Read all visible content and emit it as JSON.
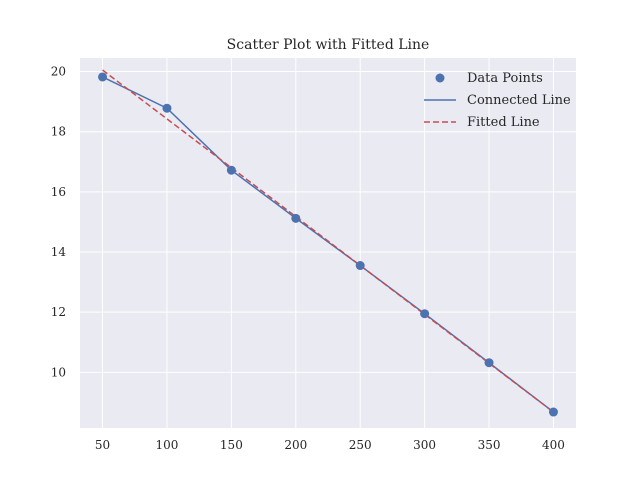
{
  "chart_data": {
    "type": "scatter",
    "title": "Scatter Plot with Fitted Line",
    "xlabel": "",
    "ylabel": "",
    "xlim": [
      32.5,
      417.5
    ],
    "ylim": [
      8.15,
      20.45
    ],
    "x_ticks": [
      50,
      100,
      150,
      200,
      250,
      300,
      350,
      400
    ],
    "y_ticks": [
      10,
      12,
      14,
      16,
      18,
      20
    ],
    "grid": true,
    "legend_position": "upper right",
    "series": [
      {
        "name": "Data Points",
        "kind": "scatter",
        "color": "#4c72b0",
        "x": [
          50,
          100,
          150,
          200,
          250,
          300,
          350,
          400
        ],
        "y": [
          19.82,
          18.78,
          16.72,
          15.12,
          13.55,
          11.95,
          10.32,
          8.68
        ]
      },
      {
        "name": "Connected Line",
        "kind": "line",
        "color": "#4c72b0",
        "x": [
          50,
          100,
          150,
          200,
          250,
          300,
          350,
          400
        ],
        "y": [
          19.82,
          18.78,
          16.72,
          15.12,
          13.55,
          11.95,
          10.32,
          8.68
        ]
      },
      {
        "name": "Fitted Line",
        "kind": "dashed-line",
        "color": "#c44e52",
        "x": [
          50,
          400
        ],
        "y": [
          20.05,
          8.68
        ]
      }
    ]
  }
}
